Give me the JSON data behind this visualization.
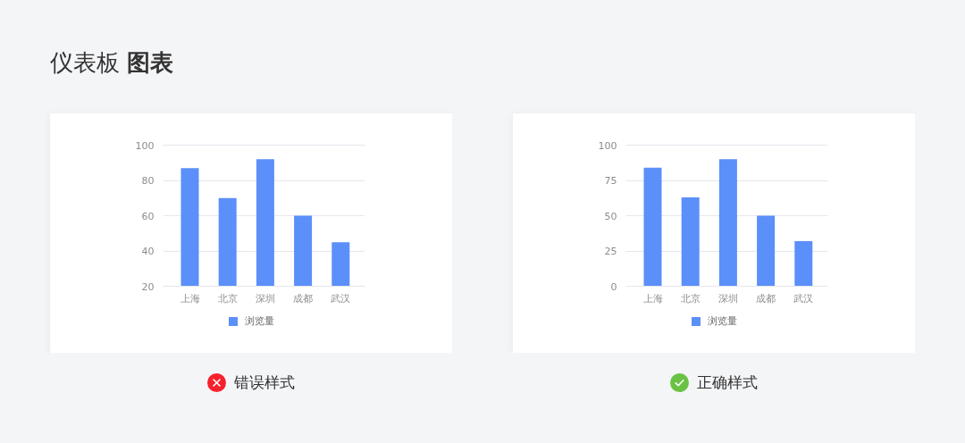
{
  "chart_data": [
    {
      "type": "bar",
      "title": "仪表板 图表",
      "categories": [
        "上海",
        "北京",
        "深圳",
        "成都",
        "武汉"
      ],
      "series": [
        {
          "name": "浏览量",
          "color": "#5b8ff9",
          "values": [
            87,
            70,
            92,
            60,
            45
          ]
        }
      ],
      "ylim": [
        20,
        100
      ],
      "yticks": [
        20,
        40,
        60,
        80,
        100
      ],
      "grid": "y",
      "legend": "bottom",
      "annotations": [
        "错误样式"
      ]
    },
    {
      "type": "bar",
      "categories": [
        "上海",
        "北京",
        "深圳",
        "成都",
        "武汉"
      ],
      "series": [
        {
          "name": "浏览量",
          "color": "#5b8ff9",
          "values": [
            84,
            63,
            90,
            50,
            32
          ]
        }
      ],
      "ylim": [
        0,
        100
      ],
      "yticks": [
        0,
        25,
        50,
        75,
        100
      ],
      "grid": "y",
      "legend": "bottom",
      "annotations": [
        "正确样式"
      ]
    }
  ]
}
